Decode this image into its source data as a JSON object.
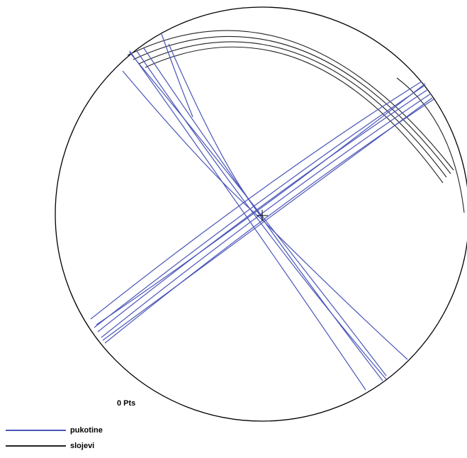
{
  "diagram": {
    "count_label": "0 Pts",
    "colors": {
      "primitive": "#000000",
      "pukotine": "#4a56b8",
      "slojevi": "#222222"
    }
  },
  "legend": [
    {
      "label": "pukotine",
      "color": "#4a56b8"
    },
    {
      "label": "slojevi",
      "color": "#222222"
    }
  ]
}
